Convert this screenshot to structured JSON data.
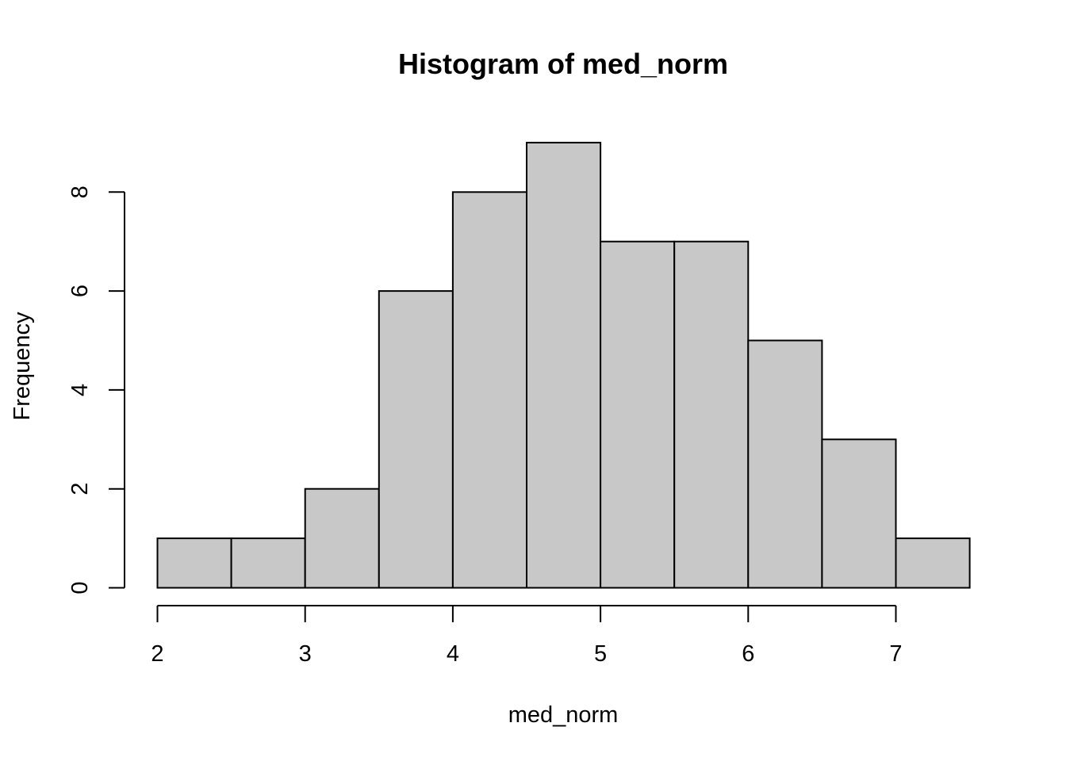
{
  "chart_data": {
    "type": "bar",
    "title": "Histogram of med_norm",
    "xlabel": "med_norm",
    "ylabel": "Frequency",
    "bins": [
      {
        "start": 2.0,
        "end": 2.5,
        "count": 1
      },
      {
        "start": 2.5,
        "end": 3.0,
        "count": 1
      },
      {
        "start": 3.0,
        "end": 3.5,
        "count": 2
      },
      {
        "start": 3.5,
        "end": 4.0,
        "count": 6
      },
      {
        "start": 4.0,
        "end": 4.5,
        "count": 8
      },
      {
        "start": 4.5,
        "end": 5.0,
        "count": 9
      },
      {
        "start": 5.0,
        "end": 5.5,
        "count": 7
      },
      {
        "start": 5.5,
        "end": 6.0,
        "count": 7
      },
      {
        "start": 6.0,
        "end": 6.5,
        "count": 5
      },
      {
        "start": 6.5,
        "end": 7.0,
        "count": 3
      },
      {
        "start": 7.0,
        "end": 7.5,
        "count": 1
      }
    ],
    "xticks": [
      2,
      3,
      4,
      5,
      6,
      7
    ],
    "yticks": [
      0,
      2,
      4,
      6,
      8
    ],
    "xlim": [
      2,
      7.5
    ],
    "ylim": [
      0,
      9
    ],
    "bar_fill": "#c8c8c8",
    "bar_stroke": "#000000",
    "grid": false,
    "legend": "none"
  }
}
